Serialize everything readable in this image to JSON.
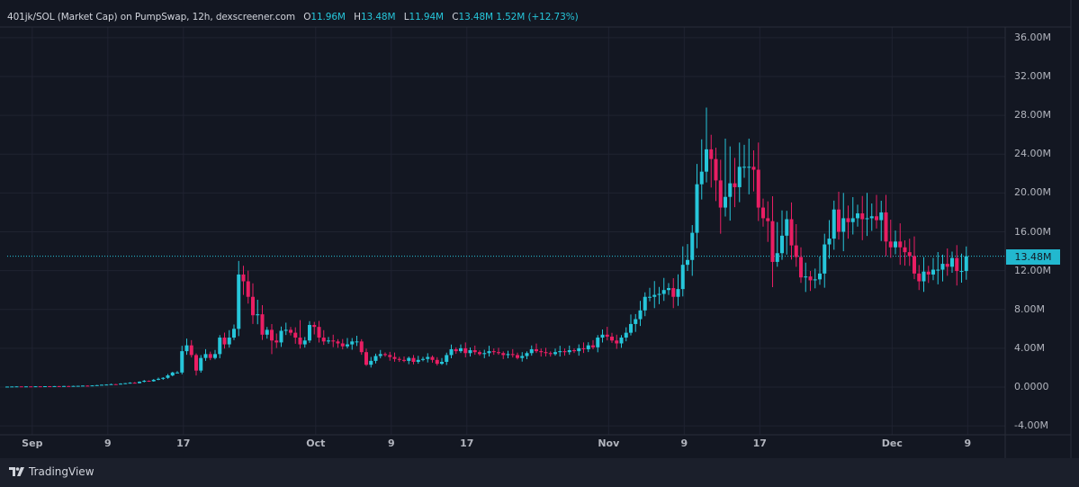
{
  "header": {
    "title": "401jk/SOL (Market Cap) on PumpSwap, 12h, dexscreener.com",
    "open_label": "O",
    "open": "11.96M",
    "high_label": "H",
    "high": "13.48M",
    "low_label": "L",
    "low": "11.94M",
    "close_label": "C",
    "close": "13.48M",
    "change": "1.52M (+12.73%)"
  },
  "footer": {
    "brand": "TradingView",
    "logo_icon": "tradingview-logo-icon"
  },
  "colors": {
    "up": "#26c6da",
    "down": "#e91e63",
    "background": "#131722",
    "grid": "#1f2330",
    "price_tag": "#22b8cf"
  },
  "chart_data": {
    "type": "candlestick",
    "title": "401jk/SOL (Market Cap) on PumpSwap, 12h",
    "interval": "12h",
    "ylabel": "Market Cap",
    "ylim": [
      -4.9,
      36.5
    ],
    "y_unit": "M",
    "y_ticks": [
      36,
      32,
      28,
      24,
      20,
      16,
      12,
      8,
      4,
      0,
      -4
    ],
    "y_tick_labels": [
      "36.00M",
      "32.00M",
      "28.00M",
      "24.00M",
      "20.00M",
      "16.00M",
      "12.00M",
      "8.00M",
      "4.00M",
      "0.0000",
      "-4.00M"
    ],
    "x_ticks": [
      {
        "label": "Sep",
        "candle": 5.3
      },
      {
        "label": "9",
        "candle": 21.3
      },
      {
        "label": "17",
        "candle": 37.3
      },
      {
        "label": "Oct",
        "candle": 65.3
      },
      {
        "label": "9",
        "candle": 81.3
      },
      {
        "label": "17",
        "candle": 97.3
      },
      {
        "label": "Nov",
        "candle": 127.3
      },
      {
        "label": "9",
        "candle": 143.3
      },
      {
        "label": "17",
        "candle": 159.3
      },
      {
        "label": "Dec",
        "candle": 187.3
      },
      {
        "label": "9",
        "candle": 203.3
      }
    ],
    "last_price": 13.48,
    "last_price_label": "13.48M",
    "closes": [
      0.05,
      0.06,
      0.07,
      0.06,
      0.07,
      0.06,
      0.08,
      0.07,
      0.09,
      0.08,
      0.1,
      0.09,
      0.11,
      0.1,
      0.12,
      0.13,
      0.15,
      0.14,
      0.17,
      0.2,
      0.24,
      0.26,
      0.3,
      0.28,
      0.35,
      0.4,
      0.45,
      0.4,
      0.55,
      0.65,
      0.6,
      0.75,
      0.85,
      0.95,
      1.2,
      1.5,
      1.5,
      3.7,
      4.3,
      3.3,
      1.7,
      3.0,
      3.4,
      3.0,
      3.4,
      5.1,
      4.4,
      5.1,
      6.0,
      11.6,
      10.9,
      9.3,
      7.4,
      7.5,
      5.4,
      5.9,
      4.8,
      4.6,
      5.8,
      5.9,
      5.6,
      5.1,
      4.4,
      4.8,
      6.4,
      6.2,
      5.1,
      4.7,
      4.8,
      4.7,
      4.5,
      4.2,
      4.4,
      4.7,
      4.7,
      3.6,
      2.3,
      2.7,
      3.2,
      3.4,
      3.3,
      3.1,
      2.9,
      2.8,
      2.7,
      3.0,
      2.6,
      2.8,
      2.9,
      3.1,
      2.8,
      2.4,
      2.6,
      3.3,
      3.9,
      3.7,
      4.0,
      3.5,
      3.8,
      3.6,
      3.4,
      3.5,
      3.7,
      3.6,
      3.5,
      3.3,
      3.4,
      3.3,
      3.0,
      3.2,
      3.5,
      3.9,
      3.7,
      3.6,
      3.5,
      3.4,
      3.6,
      3.7,
      3.6,
      3.8,
      3.7,
      4.0,
      3.9,
      4.3,
      4.1,
      5.1,
      5.4,
      5.2,
      4.8,
      4.5,
      5.1,
      5.6,
      6.5,
      7.0,
      7.9,
      9.3,
      9.3,
      9.5,
      9.6,
      10.0,
      10.2,
      9.3,
      10.1,
      12.6,
      13.1,
      15.9,
      20.9,
      22.2,
      24.5,
      23.5,
      21.3,
      18.5,
      19.6,
      21.0,
      20.6,
      22.7,
      22.7,
      22.7,
      22.4,
      18.5,
      17.4,
      17.1,
      12.9,
      13.8,
      15.6,
      17.3,
      14.6,
      13.4,
      11.3,
      11.4,
      11.0,
      11.1,
      11.7,
      14.7,
      15.3,
      18.3,
      16.0,
      17.4,
      17.0,
      17.4,
      17.9,
      17.3,
      17.4,
      17.6,
      17.2,
      18.0,
      15.0,
      14.4,
      15.0,
      14.4,
      13.9,
      13.5,
      11.7,
      10.9,
      11.9,
      11.6,
      12.1,
      12.1,
      12.7,
      12.4,
      13.3,
      11.96,
      11.96,
      13.48
    ],
    "wick_highs": {
      "38": 5.0,
      "49": 13.0,
      "50": 12.5,
      "51": 12.0,
      "53": 9.0,
      "62": 6.9,
      "64": 6.8,
      "143": 14.5,
      "148": 28.8,
      "149": 26.0,
      "152": 25.6,
      "153": 24.8,
      "155": 25.2,
      "157": 25.6,
      "163": 17.0,
      "164": 18.2,
      "185": 19.2
    },
    "wick_lows": {
      "40": 1.2,
      "50": 9.5,
      "52": 6.5,
      "56": 3.4,
      "151": 15.8,
      "162": 10.3,
      "163": 12.4,
      "169": 9.8,
      "193": 10.0
    },
    "wick_fraction": 0.05
  }
}
